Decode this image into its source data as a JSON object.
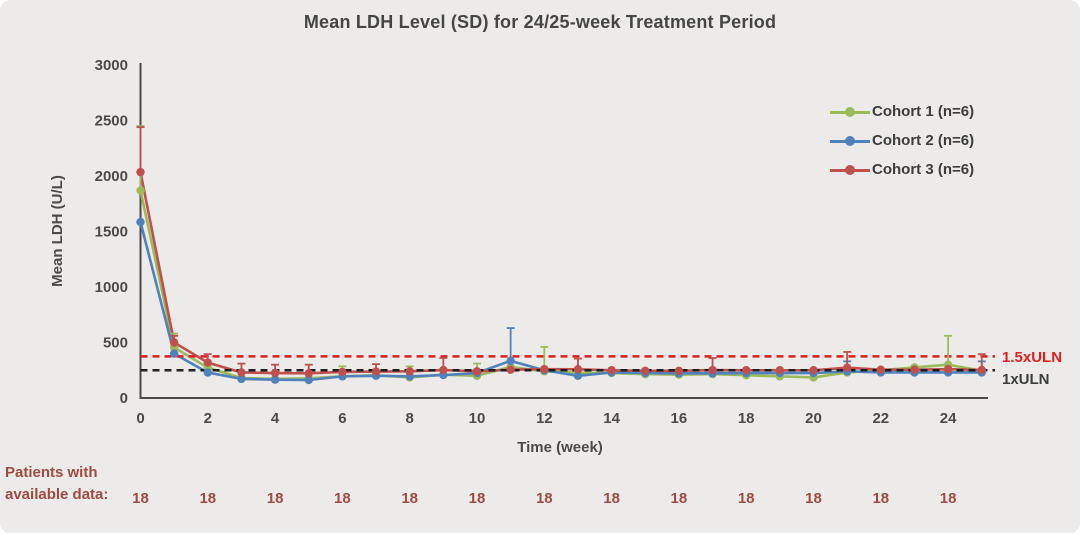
{
  "title": "Mean LDH Level (SD) for 24/25-week Treatment Period",
  "chart_data": {
    "type": "line",
    "title": "Mean LDH Level (SD) for 24/25-week Treatment Period",
    "xlabel": "Time (week)",
    "ylabel": "Mean LDH (U/L)",
    "xlim": [
      0,
      25
    ],
    "ylim": [
      0,
      3000
    ],
    "x_ticks": [
      0,
      2,
      4,
      6,
      8,
      10,
      12,
      14,
      16,
      18,
      20,
      22,
      24
    ],
    "y_ticks": [
      0,
      500,
      1000,
      1500,
      2000,
      2500,
      3000
    ],
    "grid": false,
    "legend_position": "top-right",
    "x": [
      0,
      1,
      2,
      3,
      4,
      5,
      6,
      7,
      8,
      9,
      10,
      11,
      12,
      13,
      14,
      15,
      16,
      17,
      18,
      19,
      20,
      21,
      22,
      23,
      24,
      25
    ],
    "series": [
      {
        "name": "Cohort 1 (n=6)",
        "color": "#9bbb59",
        "values": [
          1870,
          455,
          274,
          180,
          172,
          178,
          195,
          205,
          185,
          210,
          200,
          280,
          240,
          228,
          225,
          215,
          210,
          215,
          205,
          195,
          185,
          230,
          250,
          275,
          300,
          245
        ],
        "err_top": [
          2450,
          580,
          null,
          null,
          null,
          null,
          285,
          null,
          285,
          null,
          310,
          null,
          460,
          null,
          null,
          null,
          null,
          null,
          null,
          null,
          null,
          null,
          null,
          null,
          560,
          null
        ]
      },
      {
        "name": "Cohort 2 (n=6)",
        "color": "#4f81bd",
        "values": [
          1585,
          400,
          229,
          172,
          165,
          162,
          195,
          200,
          195,
          207,
          225,
          335,
          250,
          200,
          230,
          225,
          222,
          222,
          225,
          225,
          225,
          240,
          230,
          230,
          230,
          230
        ],
        "err_top": [
          null,
          null,
          null,
          null,
          null,
          null,
          null,
          null,
          null,
          null,
          null,
          630,
          null,
          null,
          null,
          null,
          null,
          null,
          null,
          null,
          null,
          330,
          null,
          null,
          null,
          330
        ]
      },
      {
        "name": "Cohort 3 (n=6)",
        "color": "#c0504d",
        "values": [
          2035,
          500,
          319,
          230,
          225,
          222,
          235,
          238,
          240,
          252,
          240,
          255,
          260,
          259,
          250,
          245,
          245,
          252,
          250,
          250,
          250,
          273,
          255,
          255,
          260,
          253
        ],
        "err_top": [
          2440,
          560,
          395,
          310,
          300,
          300,
          null,
          305,
          null,
          360,
          null,
          330,
          null,
          355,
          null,
          null,
          null,
          360,
          null,
          null,
          null,
          415,
          null,
          null,
          null,
          395
        ]
      }
    ],
    "ref_lines": [
      {
        "label": "1.5xULN",
        "value": 375,
        "color": "#e01e1e",
        "style": "dashed"
      },
      {
        "label": "1xULN",
        "value": 250,
        "color": "#1f1f1f",
        "style": "dashed"
      }
    ]
  },
  "patients": {
    "label_line1": "Patients with",
    "label_line2": "available data:",
    "weeks": [
      0,
      2,
      4,
      6,
      8,
      10,
      12,
      14,
      16,
      18,
      20,
      22,
      24
    ],
    "values": [
      "18",
      "18",
      "18",
      "18",
      "18",
      "18",
      "18",
      "18",
      "18",
      "18",
      "18",
      "18",
      "18"
    ],
    "color": "#9e4b42"
  }
}
